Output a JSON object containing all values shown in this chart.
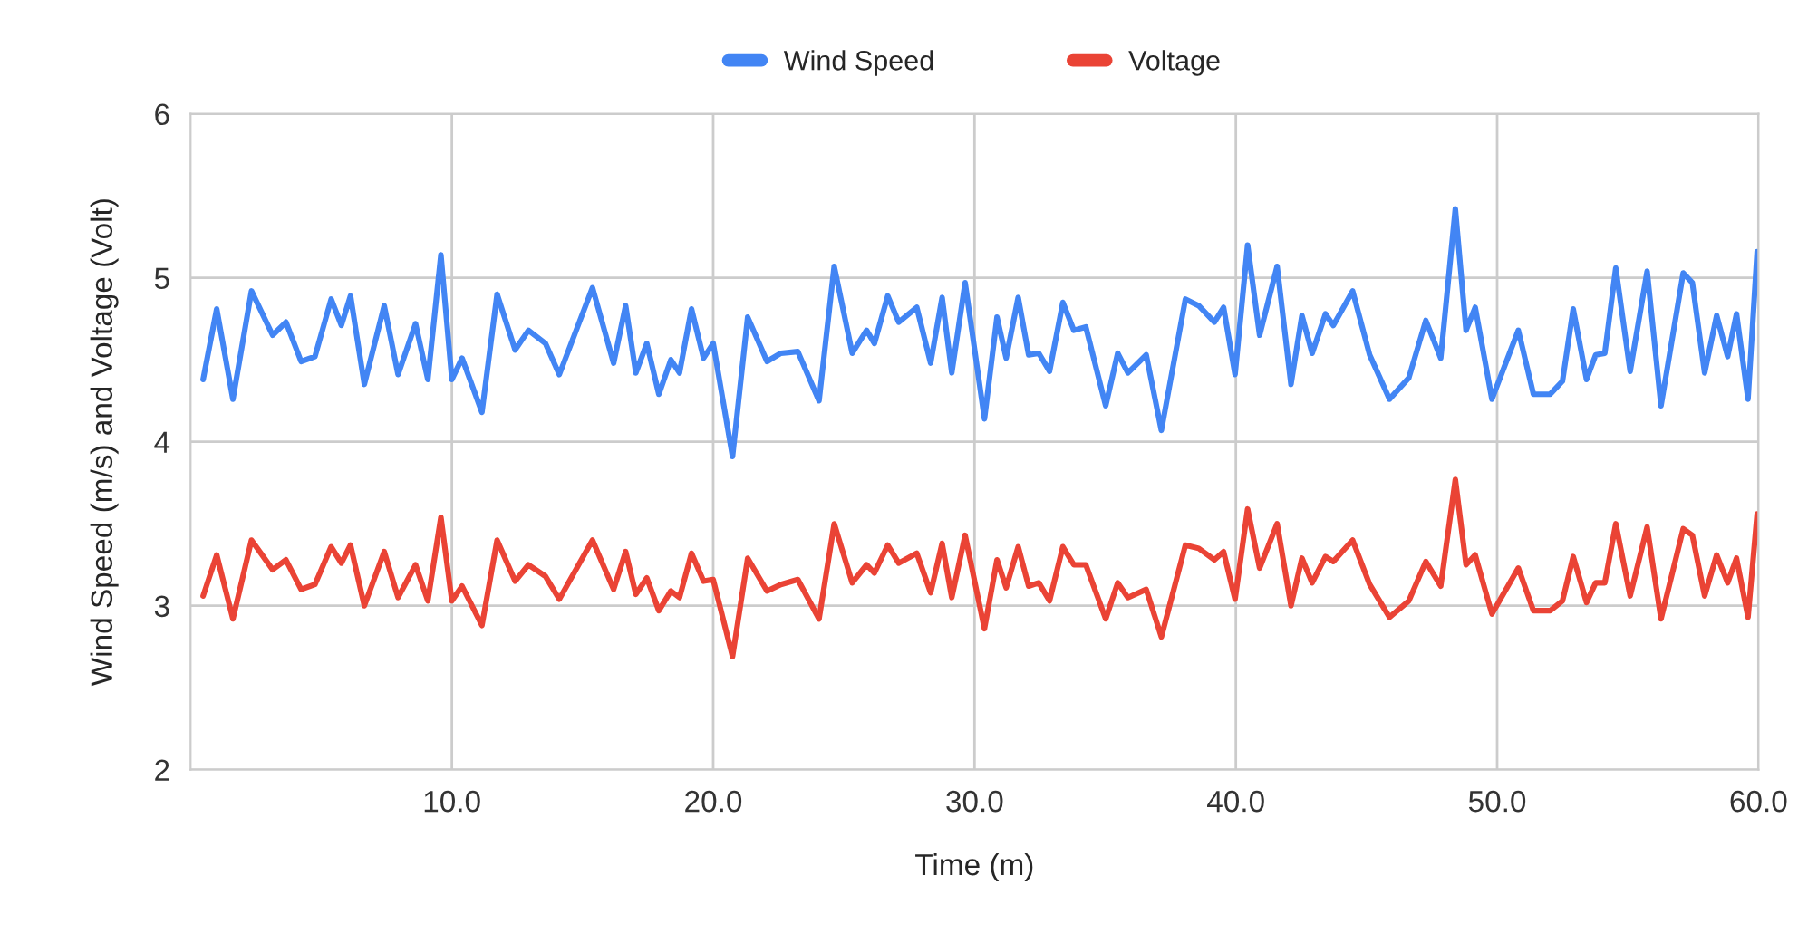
{
  "chart_data": {
    "type": "line",
    "xlabel": "Time (m)",
    "ylabel": "Wind Speed (m/s) and Voltage (Volt)",
    "x": [
      0.48,
      1.0,
      1.62,
      2.33,
      3.14,
      3.65,
      4.23,
      4.76,
      5.38,
      5.77,
      6.12,
      6.65,
      7.41,
      7.94,
      8.61,
      9.08,
      9.58,
      10.0,
      10.39,
      11.15,
      11.73,
      12.42,
      12.93,
      13.58,
      14.11,
      15.38,
      16.19,
      16.65,
      17.04,
      17.46,
      17.92,
      18.38,
      18.71,
      19.17,
      19.63,
      20.0,
      20.74,
      21.32,
      22.06,
      22.59,
      23.24,
      24.05,
      24.63,
      25.32,
      25.87,
      26.17,
      26.68,
      27.1,
      27.79,
      28.32,
      28.76,
      29.13,
      29.64,
      30.38,
      30.86,
      31.21,
      31.67,
      32.07,
      32.46,
      32.87,
      33.38,
      33.8,
      34.26,
      35.02,
      35.48,
      35.87,
      36.57,
      37.15,
      38.07,
      38.58,
      39.18,
      39.53,
      39.97,
      40.45,
      40.91,
      41.58,
      42.11,
      42.53,
      42.92,
      43.43,
      43.73,
      44.47,
      45.12,
      45.88,
      46.62,
      47.27,
      47.84,
      48.4,
      48.81,
      49.16,
      49.8,
      50.81,
      51.39,
      52.03,
      52.5,
      52.91,
      53.42,
      53.77,
      54.12,
      54.54,
      55.09,
      55.74,
      56.27,
      57.12,
      57.47,
      57.94,
      58.4,
      58.82,
      59.16,
      59.6,
      59.95
    ],
    "series": [
      {
        "name": "Wind Speed",
        "color": "#4285f4",
        "values": [
          4.38,
          4.81,
          4.26,
          4.92,
          4.65,
          4.73,
          4.49,
          4.52,
          4.87,
          4.71,
          4.89,
          4.35,
          4.83,
          4.41,
          4.72,
          4.38,
          5.14,
          4.38,
          4.51,
          4.18,
          4.9,
          4.56,
          4.68,
          4.6,
          4.41,
          4.94,
          4.48,
          4.83,
          4.42,
          4.6,
          4.29,
          4.5,
          4.42,
          4.81,
          4.51,
          4.6,
          3.91,
          4.76,
          4.49,
          4.54,
          4.55,
          4.25,
          5.07,
          4.54,
          4.68,
          4.6,
          4.89,
          4.73,
          4.82,
          4.48,
          4.88,
          4.42,
          4.97,
          4.14,
          4.76,
          4.51,
          4.88,
          4.53,
          4.54,
          4.43,
          4.85,
          4.68,
          4.7,
          4.22,
          4.54,
          4.42,
          4.53,
          4.07,
          4.87,
          4.83,
          4.73,
          4.82,
          4.41,
          5.2,
          4.65,
          5.07,
          4.35,
          4.77,
          4.54,
          4.78,
          4.71,
          4.92,
          4.53,
          4.26,
          4.39,
          4.74,
          4.51,
          5.42,
          4.68,
          4.82,
          4.26,
          4.68,
          4.29,
          4.29,
          4.37,
          4.81,
          4.38,
          4.53,
          4.54,
          5.06,
          4.43,
          5.04,
          4.22,
          5.03,
          4.97,
          4.42,
          4.77,
          4.52,
          4.78,
          4.26,
          5.16
        ]
      },
      {
        "name": "Voltage",
        "color": "#ea4335",
        "values": [
          3.06,
          3.31,
          2.92,
          3.4,
          3.22,
          3.28,
          3.1,
          3.13,
          3.36,
          3.26,
          3.37,
          3.0,
          3.33,
          3.05,
          3.25,
          3.03,
          3.54,
          3.03,
          3.12,
          2.88,
          3.4,
          3.15,
          3.25,
          3.18,
          3.04,
          3.4,
          3.1,
          3.33,
          3.07,
          3.17,
          2.97,
          3.09,
          3.05,
          3.32,
          3.15,
          3.16,
          2.69,
          3.29,
          3.09,
          3.13,
          3.16,
          2.92,
          3.5,
          3.14,
          3.25,
          3.2,
          3.37,
          3.26,
          3.32,
          3.08,
          3.38,
          3.05,
          3.43,
          2.86,
          3.28,
          3.11,
          3.36,
          3.12,
          3.14,
          3.03,
          3.36,
          3.25,
          3.25,
          2.92,
          3.14,
          3.05,
          3.1,
          2.81,
          3.37,
          3.35,
          3.28,
          3.33,
          3.04,
          3.59,
          3.23,
          3.5,
          3.0,
          3.29,
          3.14,
          3.3,
          3.27,
          3.4,
          3.13,
          2.93,
          3.03,
          3.27,
          3.12,
          3.77,
          3.25,
          3.31,
          2.95,
          3.23,
          2.97,
          2.97,
          3.03,
          3.3,
          3.02,
          3.14,
          3.14,
          3.5,
          3.06,
          3.48,
          2.92,
          3.47,
          3.43,
          3.06,
          3.31,
          3.14,
          3.29,
          2.93,
          3.56
        ]
      }
    ],
    "xlim": [
      0,
      60
    ],
    "xticks": [
      {
        "value": 10,
        "label": "10.0"
      },
      {
        "value": 20,
        "label": "20.0"
      },
      {
        "value": 30,
        "label": "30.0"
      },
      {
        "value": 40,
        "label": "40.0"
      },
      {
        "value": 50,
        "label": "50.0"
      },
      {
        "value": 60,
        "label": "60.0"
      }
    ],
    "ylim": [
      2,
      6
    ],
    "yticks": [
      2,
      3,
      4,
      5,
      6
    ],
    "grid": true,
    "legend": "top",
    "line_style": "solid"
  }
}
